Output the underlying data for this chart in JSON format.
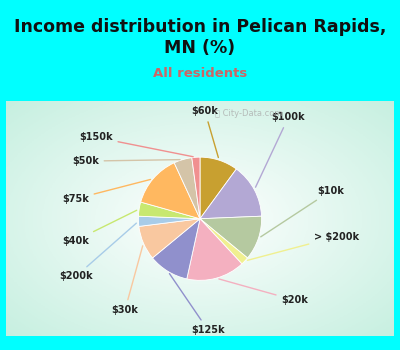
{
  "title": "Income distribution in Pelican Rapids,\nMN (%)",
  "subtitle": "All residents",
  "title_color": "#111111",
  "subtitle_color": "#cc6666",
  "bg_cyan": "#00FFFF",
  "bg_chart": "#e0f5ee",
  "title_fontsize": 12.5,
  "subtitle_fontsize": 9.5,
  "slices": [
    {
      "label": "$60k",
      "value": 9.5,
      "color": "#c8a030"
    },
    {
      "label": "$100k",
      "value": 13.5,
      "color": "#b3a8d4"
    },
    {
      "label": "$10k",
      "value": 11.0,
      "color": "#b5c9a0"
    },
    {
      "label": "> $200k",
      "value": 2.0,
      "color": "#f0f090"
    },
    {
      "label": "$20k",
      "value": 14.5,
      "color": "#f4b0c0"
    },
    {
      "label": "$125k",
      "value": 10.0,
      "color": "#9090cc"
    },
    {
      "label": "$30k",
      "value": 8.5,
      "color": "#f9c8a0"
    },
    {
      "label": "$200k",
      "value": 2.5,
      "color": "#a8cce8"
    },
    {
      "label": "$40k",
      "value": 3.5,
      "color": "#c8e870"
    },
    {
      "label": "$75k",
      "value": 13.0,
      "color": "#ffb860"
    },
    {
      "label": "$50k",
      "value": 4.5,
      "color": "#d4c4a8"
    },
    {
      "label": "$150k",
      "value": 2.0,
      "color": "#f09090"
    }
  ],
  "label_positions": {
    "$60k": [
      0.05,
      1.08,
      "center"
    ],
    "$100k": [
      0.72,
      1.02,
      "left"
    ],
    "$10k": [
      1.18,
      0.28,
      "left"
    ],
    "> $200k": [
      1.15,
      -0.18,
      "left"
    ],
    "$20k": [
      0.82,
      -0.82,
      "left"
    ],
    "$125k": [
      0.08,
      -1.12,
      "center"
    ],
    "$30k": [
      -0.62,
      -0.92,
      "right"
    ],
    "$200k": [
      -1.08,
      -0.58,
      "right"
    ],
    "$40k": [
      -1.12,
      -0.22,
      "right"
    ],
    "$75k": [
      -1.12,
      0.2,
      "right"
    ],
    "$50k": [
      -1.02,
      0.58,
      "right"
    ],
    "$150k": [
      -0.88,
      0.82,
      "right"
    ]
  },
  "watermark": "City-Data.com"
}
